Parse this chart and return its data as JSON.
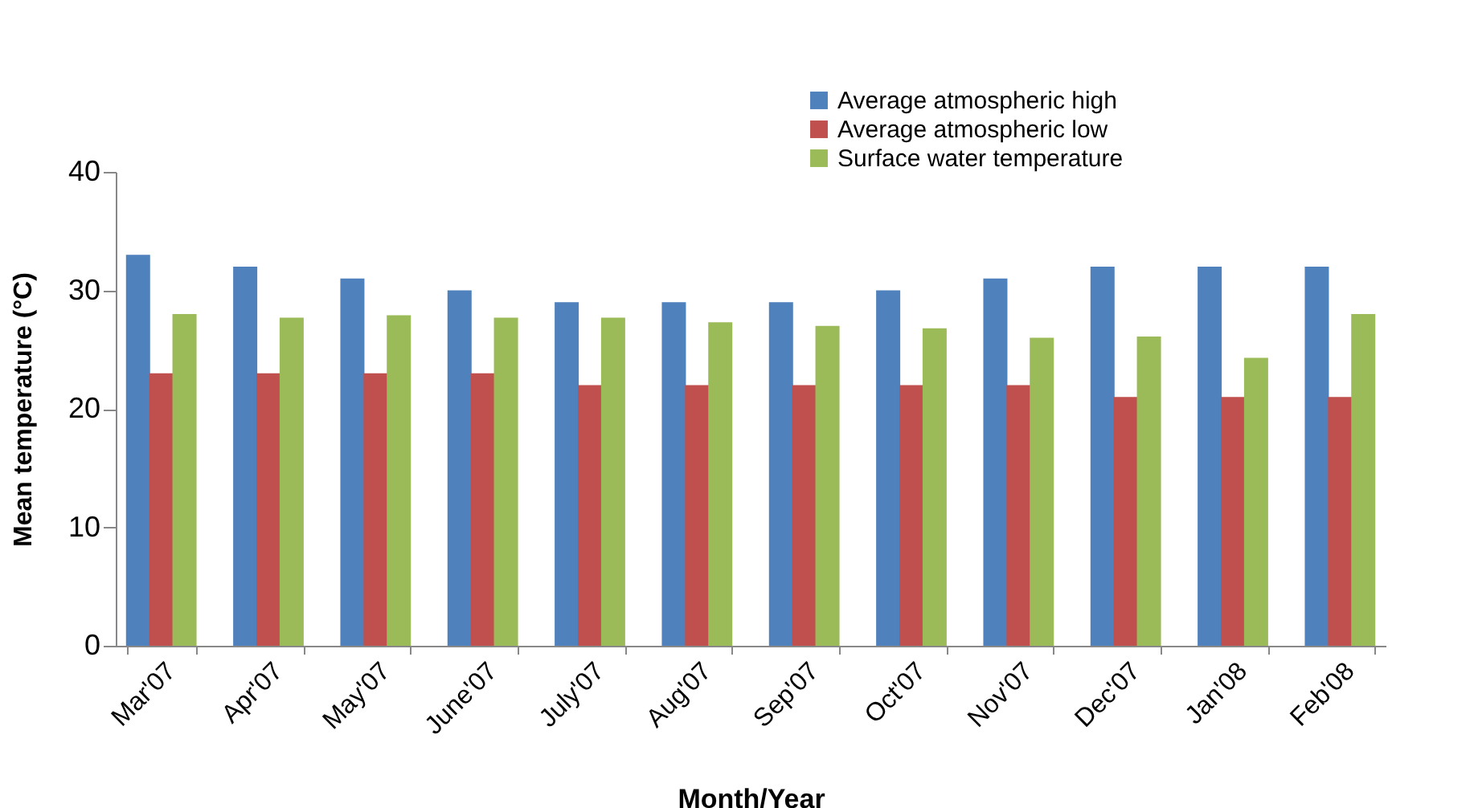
{
  "chart_data": {
    "type": "bar",
    "xlabel": "Month/Year",
    "ylabel": "Mean temperature (°C)",
    "categories": [
      "Mar'07",
      "Apr'07",
      "May'07",
      "June'07",
      "July'07",
      "Aug'07",
      "Sep'07",
      "Oct'07",
      "Nov'07",
      "Dec'07",
      "Jan'08",
      "Feb'08"
    ],
    "series": [
      {
        "name": "Average atmospheric high",
        "color": "#4f81bd",
        "values": [
          33,
          32,
          31,
          30,
          29,
          29,
          29,
          30,
          31,
          32,
          32,
          32
        ]
      },
      {
        "name": "Average atmospheric low",
        "color": "#c0504d",
        "values": [
          23,
          23,
          23,
          23,
          22,
          22,
          22,
          22,
          22,
          21,
          21,
          21
        ]
      },
      {
        "name": "Surface water temperature",
        "color": "#9bbb59",
        "values": [
          28,
          27.7,
          27.9,
          27.7,
          27.7,
          27.3,
          27,
          26.8,
          26,
          26.1,
          24.3,
          28
        ]
      }
    ],
    "ylim": [
      0,
      40
    ],
    "yticks": [
      0,
      10,
      20,
      30,
      40
    ],
    "grid": false,
    "legend": "top right"
  }
}
